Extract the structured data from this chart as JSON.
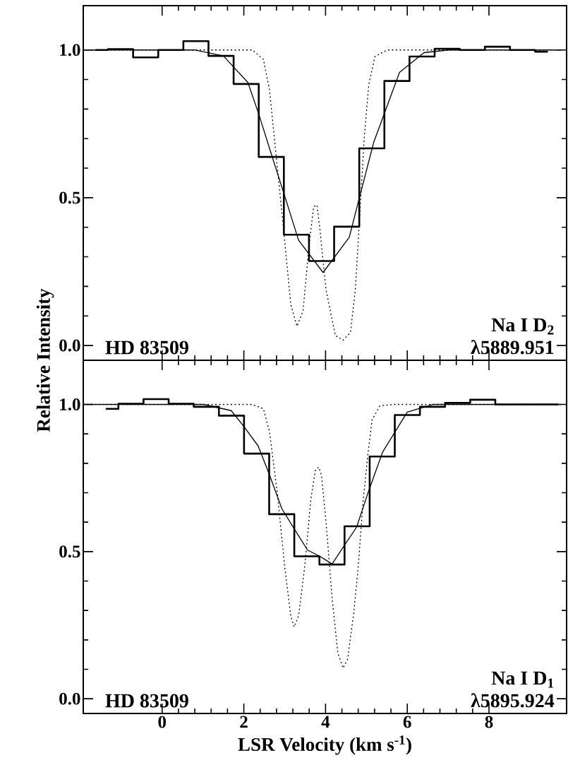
{
  "chart_data": [
    {
      "type": "line",
      "ylabel": "Relative Intensity",
      "annotations": [
        "HD 83509",
        "Na I D$_{2}$",
        "λ5889.951"
      ],
      "xlim": [
        -1.93,
        9.9
      ],
      "ylim": [
        -0.05,
        1.15
      ],
      "xticks": [
        0,
        2,
        4,
        6,
        8
      ],
      "yticks": [
        {
          "value": 0,
          "label": "0.0"
        },
        {
          "value": 0.5,
          "label": "0.5"
        },
        {
          "value": 1,
          "label": "1.0"
        }
      ],
      "tick_labels": "y",
      "series": [
        {
          "type": "step",
          "color": "#000000",
          "line_style": "solid",
          "x": [
            -1.63,
            -1.02,
            -0.4,
            0.21,
            0.83,
            1.44,
            2.06,
            2.67,
            3.29,
            3.9,
            4.52,
            5.13,
            5.75,
            6.36,
            6.98,
            7.59,
            8.21,
            8.82,
            9.44
          ],
          "values": [
            1.0,
            1.003,
            0.975,
            1.0,
            1.03,
            0.98,
            0.885,
            0.638,
            0.375,
            0.286,
            0.402,
            0.667,
            0.895,
            0.978,
            1.004,
            1.0,
            1.011,
            1.0,
            0.994
          ]
        },
        {
          "color": "#000000",
          "line_style": "solid",
          "x": [
            -1.93,
            0.79,
            1.5,
            2.1,
            2.37,
            2.7,
            3.0,
            3.34,
            3.94,
            4.58,
            4.84,
            5.18,
            5.81,
            6.41,
            7.01,
            9.77
          ],
          "values": [
            1.0,
            1.0,
            0.98,
            0.89,
            0.781,
            0.636,
            0.506,
            0.356,
            0.247,
            0.366,
            0.506,
            0.688,
            0.924,
            0.991,
            1.0,
            1.0
          ]
        },
        {
          "color": "#000000",
          "line_style": "dotted",
          "x": [
            -1.93,
            2.21,
            2.48,
            2.63,
            2.78,
            2.97,
            3.15,
            3.3,
            3.45,
            3.6,
            3.71,
            3.79,
            3.86,
            4.01,
            4.24,
            4.43,
            4.61,
            4.73,
            4.84,
            4.95,
            5.06,
            5.21,
            5.51,
            9.77
          ],
          "values": [
            1.0,
            1.0,
            0.968,
            0.864,
            0.657,
            0.397,
            0.138,
            0.065,
            0.117,
            0.345,
            0.47,
            0.475,
            0.397,
            0.19,
            0.034,
            0.018,
            0.044,
            0.19,
            0.449,
            0.708,
            0.885,
            0.978,
            1.0,
            1.0
          ]
        }
      ]
    },
    {
      "type": "line",
      "xlabel": "LSR Velocity (km s$^{-1}$)",
      "annotations": [
        "HD 83509",
        "Na I D$_{1}$",
        "λ5895.924"
      ],
      "xlim": [
        -1.93,
        9.9
      ],
      "ylim": [
        -0.05,
        1.15
      ],
      "xticks": [
        0,
        2,
        4,
        6,
        8
      ],
      "yticks": [
        {
          "value": 0,
          "label": "0.0"
        },
        {
          "value": 0.5,
          "label": "0.5"
        },
        {
          "value": 1,
          "label": "1.0"
        }
      ],
      "series": [
        {
          "type": "step",
          "color": "#000000",
          "line_style": "solid",
          "x": [
            -1.38,
            -0.76,
            -0.15,
            0.47,
            1.08,
            1.7,
            2.31,
            2.93,
            3.54,
            4.16,
            4.77,
            5.39,
            6.0,
            6.62,
            7.23,
            7.85,
            8.46,
            9.08,
            9.69
          ],
          "values": [
            0.985,
            1.002,
            1.018,
            1.002,
            0.992,
            0.962,
            0.833,
            0.627,
            0.484,
            0.456,
            0.586,
            0.823,
            0.964,
            0.992,
            1.005,
            1.016,
            1.0,
            1.0,
            1.0
          ]
        },
        {
          "color": "#000000",
          "line_style": "solid",
          "x": [
            -1.93,
            1.02,
            1.69,
            1.99,
            2.35,
            2.63,
            2.93,
            3.23,
            3.56,
            3.86,
            4.16,
            4.46,
            4.76,
            5.06,
            5.4,
            6.0,
            6.64,
            9.77
          ],
          "values": [
            1.0,
            1.0,
            0.979,
            0.927,
            0.859,
            0.76,
            0.646,
            0.578,
            0.505,
            0.484,
            0.458,
            0.521,
            0.583,
            0.708,
            0.839,
            0.974,
            1.0,
            1.0
          ]
        },
        {
          "color": "#000000",
          "line_style": "dotted",
          "x": [
            -1.93,
            2.21,
            2.48,
            2.63,
            2.82,
            3.0,
            3.15,
            3.23,
            3.34,
            3.49,
            3.64,
            3.75,
            3.83,
            3.9,
            4.01,
            4.16,
            4.3,
            4.43,
            4.54,
            4.69,
            4.8,
            4.91,
            5.03,
            5.14,
            5.33,
            5.66,
            9.77
          ],
          "values": [
            1.0,
            1.0,
            0.985,
            0.906,
            0.698,
            0.448,
            0.281,
            0.244,
            0.281,
            0.448,
            0.677,
            0.776,
            0.787,
            0.76,
            0.604,
            0.343,
            0.156,
            0.104,
            0.135,
            0.291,
            0.448,
            0.656,
            0.823,
            0.948,
            0.995,
            1.0,
            1.0
          ]
        }
      ]
    }
  ]
}
